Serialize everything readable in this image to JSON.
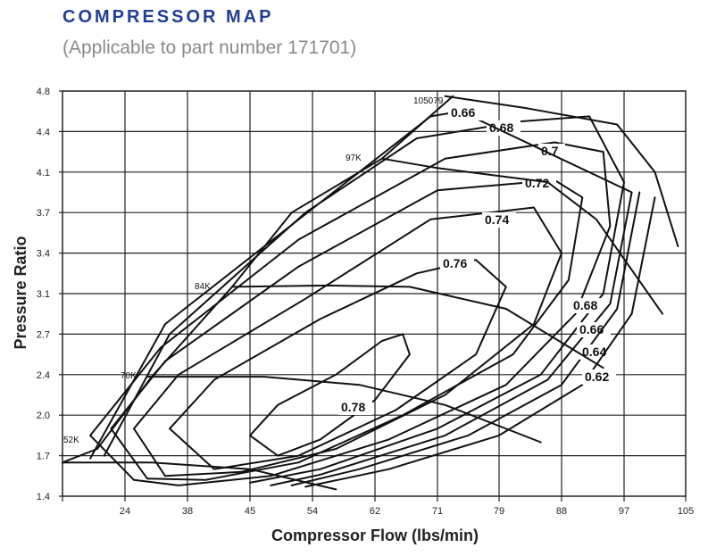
{
  "header": {
    "title": "COMPRESSOR MAP",
    "subtitle": "(Applicable to part number 171701)"
  },
  "colors": {
    "title": "#1f3f95",
    "subtitle": "#8a8a8a",
    "lines": "#111111",
    "grid": "#222222"
  },
  "chart_data": {
    "type": "line",
    "title": "COMPRESSOR MAP",
    "subtitle": "(Applicable to part number 171701)",
    "xlabel": "Compressor Flow (lbs/min)",
    "ylabel": "Pressure Ratio",
    "x_tick_labels": [
      "24",
      "38",
      "45",
      "54",
      "62",
      "71",
      "79",
      "88",
      "97",
      "105"
    ],
    "y_tick_labels": [
      "1.4",
      "1.7",
      "2.0",
      "2.4",
      "2.7",
      "3.1",
      "3.4",
      "3.7",
      "4.1",
      "4.4",
      "4.8"
    ],
    "ylim": [
      1.4,
      4.8
    ],
    "grid": true,
    "speed_lines": [
      {
        "name": "52K",
        "points": [
          [
            15,
            1.65
          ],
          [
            30,
            1.65
          ],
          [
            45,
            1.6
          ],
          [
            57,
            1.45
          ]
        ]
      },
      {
        "name": "70K",
        "points": [
          [
            29,
            2.38
          ],
          [
            47,
            2.38
          ],
          [
            60,
            2.3
          ],
          [
            72,
            2.1
          ],
          [
            85,
            1.8
          ]
        ]
      },
      {
        "name": "84K",
        "points": [
          [
            43,
            3.15
          ],
          [
            56,
            3.16
          ],
          [
            67,
            3.15
          ],
          [
            80,
            2.95
          ],
          [
            94,
            2.45
          ]
        ]
      },
      {
        "name": "97K",
        "points": [
          [
            63,
            4.2
          ],
          [
            71,
            4.13
          ],
          [
            86,
            4.0
          ],
          [
            93,
            3.65
          ],
          [
            102,
            2.9
          ]
        ]
      },
      {
        "name": "105079",
        "points": [
          [
            72,
            4.75
          ],
          [
            83,
            4.63
          ],
          [
            96,
            4.47
          ],
          [
            101,
            4.1
          ],
          [
            104,
            3.45
          ]
        ]
      }
    ],
    "efficiency_islands": [
      {
        "label": "0.78",
        "points": [
          [
            49,
            1.7
          ],
          [
            45,
            1.85
          ],
          [
            49,
            2.1
          ],
          [
            57,
            2.4
          ],
          [
            63,
            2.65
          ],
          [
            66,
            2.7
          ],
          [
            67,
            2.55
          ],
          [
            62,
            2.15
          ],
          [
            55,
            1.82
          ],
          [
            49,
            1.7
          ]
        ]
      },
      {
        "label": "0.76",
        "points": [
          [
            41,
            1.6
          ],
          [
            34,
            1.9
          ],
          [
            41,
            2.35
          ],
          [
            55,
            2.85
          ],
          [
            68,
            3.25
          ],
          [
            76,
            3.35
          ],
          [
            80,
            3.15
          ],
          [
            76,
            2.55
          ],
          [
            65,
            2.05
          ],
          [
            52,
            1.7
          ],
          [
            41,
            1.6
          ]
        ]
      },
      {
        "label": "0.74",
        "points": [
          [
            33,
            1.55
          ],
          [
            26,
            1.9
          ],
          [
            36,
            2.4
          ],
          [
            53,
            3.05
          ],
          [
            70,
            3.65
          ],
          [
            84,
            3.75
          ],
          [
            88,
            3.4
          ],
          [
            84,
            2.8
          ],
          [
            72,
            2.2
          ],
          [
            57,
            1.75
          ],
          [
            44,
            1.58
          ],
          [
            33,
            1.55
          ]
        ]
      },
      {
        "label": "0.72",
        "points": [
          [
            29,
            1.53
          ],
          [
            22,
            1.9
          ],
          [
            33,
            2.5
          ],
          [
            52,
            3.3
          ],
          [
            71,
            3.92
          ],
          [
            87,
            4.02
          ],
          [
            91,
            3.85
          ],
          [
            89,
            3.2
          ],
          [
            81,
            2.55
          ],
          [
            66,
            2.0
          ],
          [
            52,
            1.65
          ],
          [
            40,
            1.52
          ],
          [
            29,
            1.53
          ]
        ]
      },
      {
        "label": "0.7",
        "points": [
          [
            26,
            1.52
          ],
          [
            19,
            1.85
          ],
          [
            32,
            2.6
          ],
          [
            52,
            3.5
          ],
          [
            72,
            4.2
          ],
          [
            87,
            4.32
          ],
          [
            94,
            4.25
          ],
          [
            95,
            3.6
          ],
          [
            90,
            2.9
          ],
          [
            80,
            2.3
          ],
          [
            64,
            1.82
          ],
          [
            48,
            1.55
          ],
          [
            36,
            1.48
          ],
          [
            26,
            1.52
          ]
        ]
      },
      {
        "label": "0.68",
        "points": [
          [
            21,
            1.7
          ],
          [
            34,
            2.7
          ],
          [
            53,
            3.7
          ],
          [
            68,
            4.35
          ],
          [
            82,
            4.5
          ],
          [
            92,
            4.55
          ],
          [
            97,
            4.0
          ],
          [
            94,
            3.1
          ],
          [
            85,
            2.4
          ],
          [
            71,
            1.9
          ],
          [
            55,
            1.6
          ],
          [
            45,
            1.5
          ]
        ]
      },
      {
        "label": "0.66",
        "points": [
          [
            19,
            1.68
          ],
          [
            33,
            2.8
          ],
          [
            55,
            3.8
          ],
          [
            70,
            4.55
          ],
          [
            74,
            4.6
          ],
          [
            98,
            3.9
          ],
          [
            95,
            3.0
          ],
          [
            86,
            2.35
          ],
          [
            72,
            1.85
          ],
          [
            55,
            1.56
          ],
          [
            48,
            1.48
          ]
        ]
      },
      {
        "label": "0.64",
        "points": [
          [
            99,
            3.9
          ],
          [
            96,
            2.95
          ],
          [
            88,
            2.3
          ],
          [
            75,
            1.85
          ],
          [
            60,
            1.6
          ],
          [
            51,
            1.48
          ]
        ]
      },
      {
        "label": "0.62",
        "points": [
          [
            101,
            3.85
          ],
          [
            98,
            2.9
          ],
          [
            91,
            2.3
          ],
          [
            79,
            1.85
          ],
          [
            64,
            1.6
          ],
          [
            53,
            1.47
          ]
        ]
      }
    ],
    "surge_line": [
      [
        15,
        1.65
      ],
      [
        20,
        1.75
      ],
      [
        30,
        2.38
      ],
      [
        43,
        3.15
      ],
      [
        51,
        3.7
      ],
      [
        63,
        4.2
      ],
      [
        73,
        4.75
      ]
    ]
  }
}
